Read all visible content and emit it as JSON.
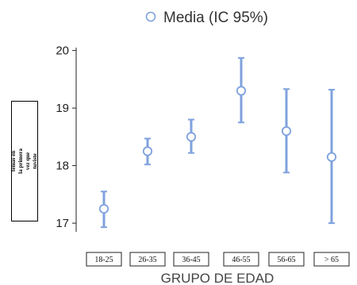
{
  "legend": {
    "label": "Media (IC 95%)"
  },
  "chart_data": {
    "type": "errorbar",
    "categories": [
      "18-25",
      "26-35",
      "36-45",
      "46-55",
      "56-65",
      "> 65"
    ],
    "series": [
      {
        "name": "Media (IC 95%)",
        "mean": [
          17.25,
          18.25,
          18.5,
          19.3,
          18.6,
          18.15
        ],
        "lower": [
          16.93,
          18.02,
          18.22,
          18.75,
          17.88,
          17.0
        ],
        "upper": [
          17.55,
          18.47,
          18.8,
          19.87,
          19.33,
          19.32
        ]
      }
    ],
    "yticks": [
      17,
      18,
      19,
      20
    ],
    "ylim": [
      16.85,
      20.05
    ],
    "xlabel": "GRUPO DE EDAD",
    "ylabel": "¿Cuántos años tenías en la primera vez que tuviste sexo con alguien?",
    "legend_position": "top",
    "grid": false,
    "colors": {
      "marker": "#7fa2de",
      "bar": "#7fa2de"
    }
  }
}
